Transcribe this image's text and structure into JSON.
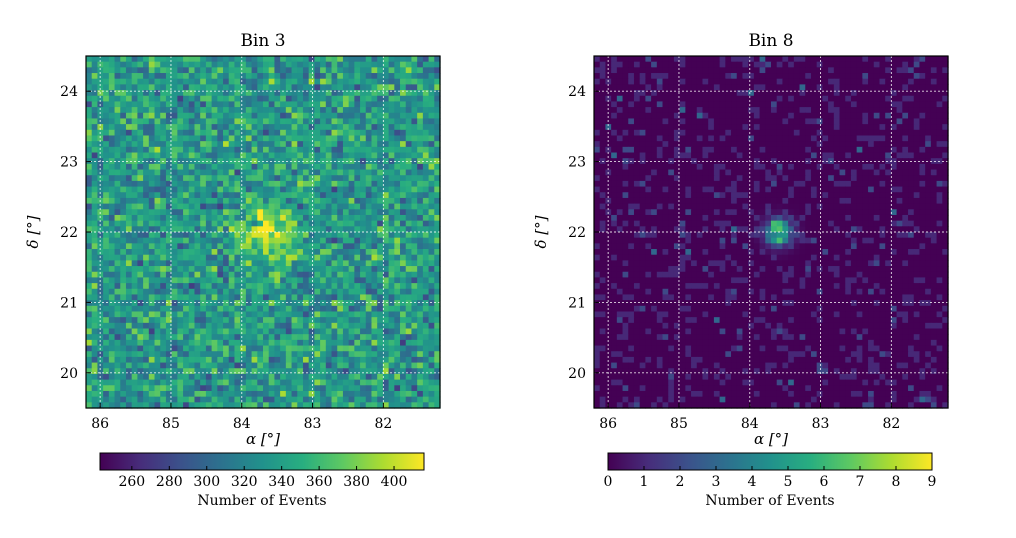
{
  "chart_data": [
    {
      "type": "heatmap",
      "title": "Bin 3",
      "xlabel": "α [°]",
      "ylabel": "δ [°]",
      "xlim": [
        86.2,
        81.2
      ],
      "ylim": [
        19.5,
        24.5
      ],
      "x_ticks": [
        86,
        85,
        84,
        83,
        82
      ],
      "y_ticks": [
        20,
        21,
        22,
        23,
        24
      ],
      "grid": true,
      "colormap": "viridis",
      "colorbar": {
        "label": "Number of Events",
        "range": [
          243,
          416
        ],
        "ticks": [
          260,
          280,
          300,
          320,
          340,
          360,
          380,
          400
        ]
      },
      "background_level": 335,
      "noise_spread": 22,
      "source": {
        "ra": 83.6,
        "dec": 22.0,
        "peak_excess": 60,
        "sigma_deg": 0.28
      }
    },
    {
      "type": "heatmap",
      "title": "Bin 8",
      "xlabel": "α [°]",
      "ylabel": "δ [°]",
      "xlim": [
        86.2,
        81.2
      ],
      "ylim": [
        19.5,
        24.5
      ],
      "x_ticks": [
        86,
        85,
        84,
        83,
        82
      ],
      "y_ticks": [
        20,
        21,
        22,
        23,
        24
      ],
      "grid": true,
      "colormap": "viridis",
      "colorbar": {
        "label": "Number of Events",
        "range": [
          0,
          9
        ],
        "ticks": [
          0,
          1,
          2,
          3,
          4,
          5,
          6,
          7,
          8,
          9
        ]
      },
      "background_level": 0.25,
      "noise_spread": 0,
      "source": {
        "ra": 83.6,
        "dec": 22.0,
        "peak_excess": 7,
        "sigma_deg": 0.13
      }
    }
  ],
  "colors": {
    "viridis": [
      "#440154",
      "#472d7b",
      "#3b528b",
      "#2c728e",
      "#21918c",
      "#28ae80",
      "#5ec962",
      "#addc30",
      "#fde725"
    ],
    "grid": "#ffffff",
    "axis": "#000000"
  }
}
